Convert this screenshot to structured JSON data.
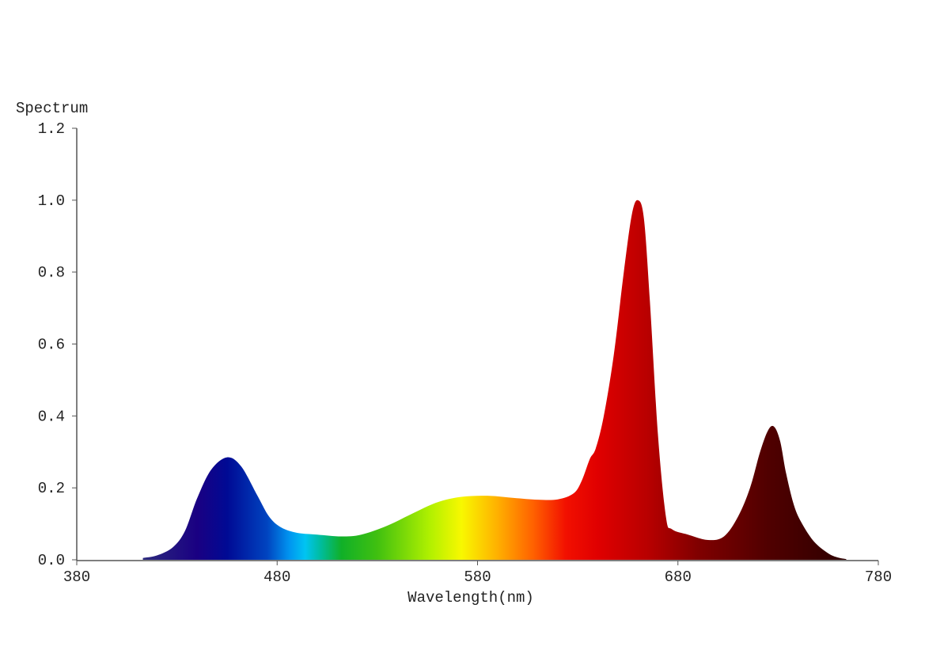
{
  "chart_data": {
    "type": "area",
    "title": "",
    "xlabel": "Wavelength(nm)",
    "ylabel": "Spectrum",
    "xlim": [
      380,
      780
    ],
    "ylim": [
      0,
      1.2
    ],
    "xticks": [
      "380",
      "480",
      "580",
      "680",
      "780"
    ],
    "yticks": [
      "0.0",
      "0.2",
      "0.4",
      "0.6",
      "0.8",
      "1.0",
      "1.2"
    ],
    "grid": false,
    "x": [
      413,
      420,
      428,
      434,
      440,
      447,
      455,
      462,
      470,
      476,
      482,
      490,
      500,
      512,
      522,
      535,
      548,
      560,
      572,
      585,
      598,
      610,
      620,
      628,
      632,
      636,
      639,
      643,
      648,
      653,
      657,
      660,
      663,
      666,
      670,
      674,
      677,
      685,
      695,
      703,
      710,
      716,
      721,
      725,
      728,
      731,
      734,
      738,
      742,
      748,
      755,
      760,
      764
    ],
    "values": [
      0.005,
      0.012,
      0.035,
      0.08,
      0.17,
      0.25,
      0.285,
      0.26,
      0.18,
      0.12,
      0.09,
      0.075,
      0.07,
      0.065,
      0.07,
      0.095,
      0.13,
      0.16,
      0.175,
      0.178,
      0.172,
      0.167,
      0.168,
      0.185,
      0.22,
      0.28,
      0.31,
      0.4,
      0.57,
      0.8,
      0.96,
      1.0,
      0.95,
      0.72,
      0.35,
      0.12,
      0.085,
      0.07,
      0.055,
      0.065,
      0.12,
      0.2,
      0.3,
      0.36,
      0.37,
      0.33,
      0.24,
      0.15,
      0.1,
      0.05,
      0.018,
      0.006,
      0.002
    ],
    "color_stops": [
      {
        "nm": 413,
        "color": "#2c2a7e"
      },
      {
        "nm": 440,
        "color": "#1a0082"
      },
      {
        "nm": 455,
        "color": "#000a94"
      },
      {
        "nm": 475,
        "color": "#0044c0"
      },
      {
        "nm": 486,
        "color": "#0094f0"
      },
      {
        "nm": 494,
        "color": "#00c4f2"
      },
      {
        "nm": 502,
        "color": "#00bc9a"
      },
      {
        "nm": 512,
        "color": "#10b028"
      },
      {
        "nm": 530,
        "color": "#40c010"
      },
      {
        "nm": 556,
        "color": "#b0f000"
      },
      {
        "nm": 572,
        "color": "#f8f800"
      },
      {
        "nm": 590,
        "color": "#ffb000"
      },
      {
        "nm": 608,
        "color": "#ff6000"
      },
      {
        "nm": 624,
        "color": "#f21000"
      },
      {
        "nm": 640,
        "color": "#e00000"
      },
      {
        "nm": 665,
        "color": "#b80000"
      },
      {
        "nm": 690,
        "color": "#800000"
      },
      {
        "nm": 725,
        "color": "#500000"
      },
      {
        "nm": 764,
        "color": "#2e0000"
      }
    ],
    "axis_color": "#555555"
  }
}
